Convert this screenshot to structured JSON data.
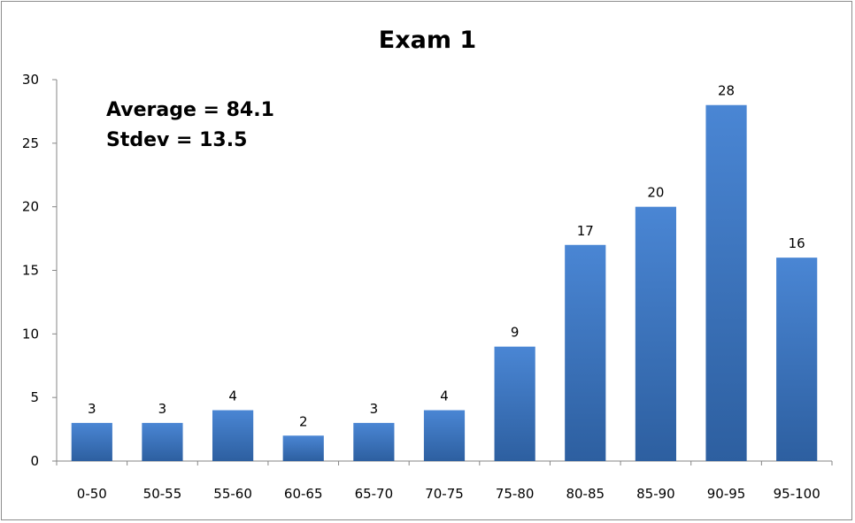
{
  "chart_data": {
    "type": "bar",
    "title": "Exam 1",
    "xlabel": "",
    "ylabel": "",
    "categories": [
      "0-50",
      "50-55",
      "55-60",
      "60-65",
      "65-70",
      "70-75",
      "75-80",
      "80-85",
      "85-90",
      "90-95",
      "95-100"
    ],
    "values": [
      3,
      3,
      4,
      2,
      3,
      4,
      9,
      17,
      20,
      28,
      16
    ],
    "ylim": [
      0,
      30
    ],
    "yticks": [
      0,
      5,
      10,
      15,
      20,
      25,
      30
    ],
    "grid": false,
    "legend": "none",
    "data_labels": true,
    "annotations": [
      "Average = 84.1",
      "Stdev = 13.5"
    ],
    "colors": {
      "bar_top": "#4a86d4",
      "bar_bottom": "#2d5fa0",
      "axis": "#868686"
    }
  }
}
